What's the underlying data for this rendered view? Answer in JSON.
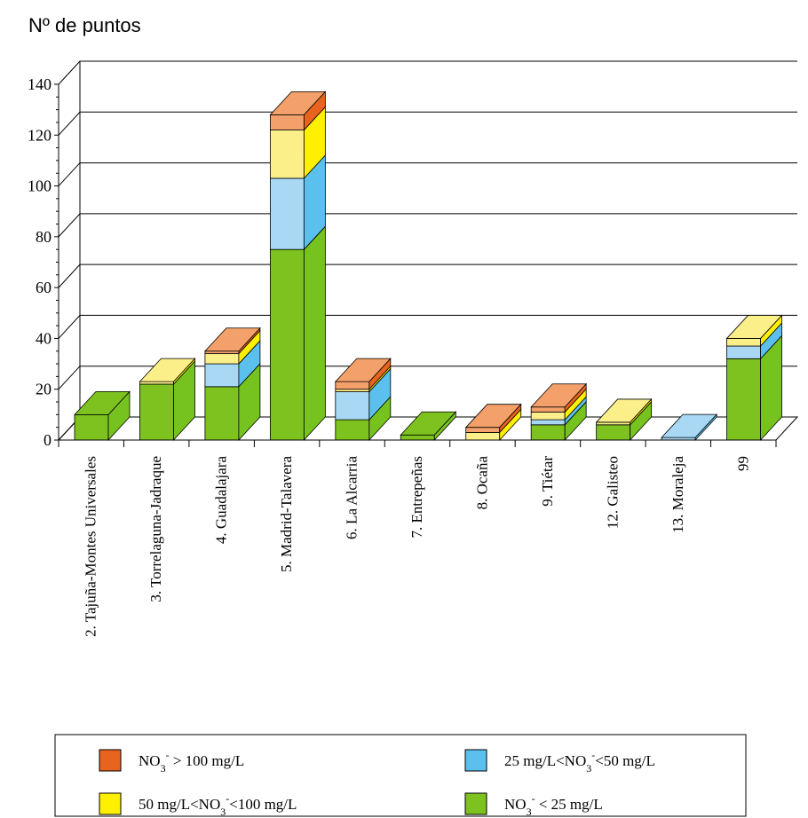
{
  "chart_data": {
    "type": "bar",
    "stacked": true,
    "three_d": true,
    "ylabel": "Nº de puntos",
    "ylim": [
      0,
      140
    ],
    "yticks": [
      "0",
      "20",
      "40",
      "60",
      "80",
      "100",
      "120",
      "140"
    ],
    "grid": true,
    "categories": [
      "2. Tajuña-Montes Universales",
      "3. Torrelaguna-Jadraque",
      "4. Guadalajara",
      "5. Madrid-Talavera",
      "6. La Alcarria",
      "7. Entrepeñas",
      "8. Ocaña",
      "9. Tiétar",
      "12. Galisteo",
      "13. Moraleja",
      "99"
    ],
    "series": [
      {
        "key": "lt25",
        "color": "#8ACB1A",
        "values": [
          10,
          22,
          21,
          75,
          8,
          2,
          0,
          6,
          6,
          0,
          32
        ]
      },
      {
        "key": "25to50",
        "color": "#A8D8F4",
        "values": [
          0,
          0,
          9,
          28,
          11,
          0,
          0,
          2,
          0,
          1,
          5
        ]
      },
      {
        "key": "50to100",
        "color": "#FBEF8A",
        "values": [
          0,
          1,
          4,
          19,
          1,
          0,
          3,
          3,
          1,
          0,
          3
        ]
      },
      {
        "key": "gt100",
        "color": "#F3A06A",
        "values": [
          0,
          0,
          1,
          6,
          3,
          0,
          2,
          2,
          0,
          0,
          0
        ]
      }
    ],
    "legend": {
      "placement": "bottom",
      "items": [
        {
          "key": "gt100",
          "main": "NO",
          "sub": "3",
          "sup": "-",
          "rest": " > 100 mg/L",
          "pre": "",
          "color": "#E8641E"
        },
        {
          "key": "25to50",
          "main": "25 mg/L<NO",
          "sub": "3",
          "sup": "-",
          "rest": "<50 mg/L",
          "pre": "",
          "color": "#5BC0EE"
        },
        {
          "key": "50to100",
          "main": "50 mg/L<NO",
          "sub": "3",
          "sup": "-",
          "rest": "<100 mg/L",
          "pre": "",
          "color": "#FFEF00"
        },
        {
          "key": "lt25",
          "main": "NO",
          "sub": "3",
          "sup": "-",
          "rest": " < 25 mg/L",
          "pre": "",
          "color": "#7DC21E"
        }
      ]
    }
  }
}
